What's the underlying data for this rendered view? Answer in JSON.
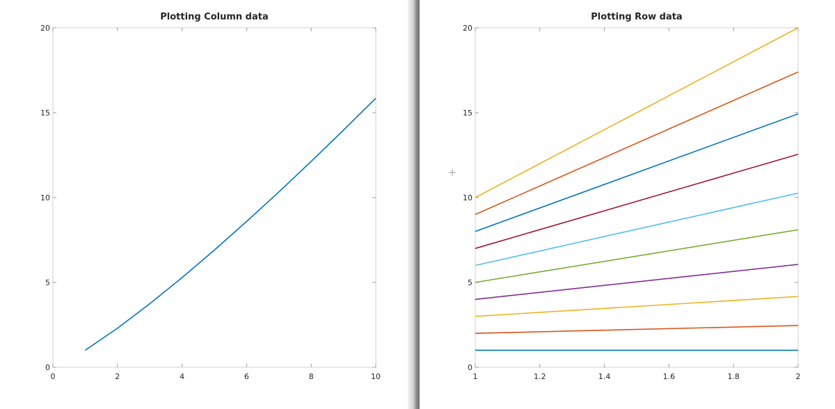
{
  "chart_data": [
    {
      "type": "line",
      "title": "Plotting Column data",
      "xlabel": "",
      "ylabel": "",
      "xlim": [
        0,
        10
      ],
      "ylim": [
        0,
        20
      ],
      "xticks": [
        0,
        2,
        4,
        6,
        8,
        10
      ],
      "xtick_labels": [
        "0",
        "2",
        "4",
        "6",
        "8",
        "10"
      ],
      "yticks": [
        0,
        5,
        10,
        15,
        20
      ],
      "ytick_labels": [
        "0",
        "5",
        "10",
        "15",
        "20"
      ],
      "grid": false,
      "series": [
        {
          "color": "#0072BD",
          "x": [
            1,
            2,
            3,
            4,
            5,
            6,
            7,
            8,
            9,
            10
          ],
          "y": [
            1.0,
            2.3,
            3.74,
            5.28,
            6.9,
            8.59,
            10.33,
            12.13,
            13.97,
            15.85
          ]
        }
      ]
    },
    {
      "type": "line",
      "title": "Plotting Row data",
      "xlabel": "",
      "ylabel": "",
      "xlim": [
        1,
        2
      ],
      "ylim": [
        0,
        20
      ],
      "xticks": [
        1,
        1.2,
        1.4,
        1.6,
        1.8,
        2
      ],
      "xtick_labels": [
        "1",
        "1.2",
        "1.4",
        "1.6",
        "1.8",
        "2"
      ],
      "yticks": [
        0,
        5,
        10,
        15,
        20
      ],
      "ytick_labels": [
        "0",
        "5",
        "10",
        "15",
        "20"
      ],
      "grid": false,
      "series": [
        {
          "color": "#0072BD",
          "x": [
            1,
            2
          ],
          "y": [
            1,
            1
          ]
        },
        {
          "color": "#D95319",
          "x": [
            1,
            2
          ],
          "y": [
            2,
            2.46
          ]
        },
        {
          "color": "#EDB120",
          "x": [
            1,
            2
          ],
          "y": [
            3,
            4.17
          ]
        },
        {
          "color": "#7E2F8E",
          "x": [
            1,
            2
          ],
          "y": [
            4,
            6.06
          ]
        },
        {
          "color": "#77AC30",
          "x": [
            1,
            2
          ],
          "y": [
            5,
            8.1
          ]
        },
        {
          "color": "#4DBEEE",
          "x": [
            1,
            2
          ],
          "y": [
            6,
            10.26
          ]
        },
        {
          "color": "#A2142F",
          "x": [
            1,
            2
          ],
          "y": [
            7,
            12.55
          ]
        },
        {
          "color": "#0072BD",
          "x": [
            1,
            2
          ],
          "y": [
            8,
            14.93
          ]
        },
        {
          "color": "#D95319",
          "x": [
            1,
            2
          ],
          "y": [
            9,
            17.4
          ]
        },
        {
          "color": "#EDB120",
          "x": [
            1,
            2
          ],
          "y": [
            10,
            20
          ]
        }
      ]
    }
  ]
}
